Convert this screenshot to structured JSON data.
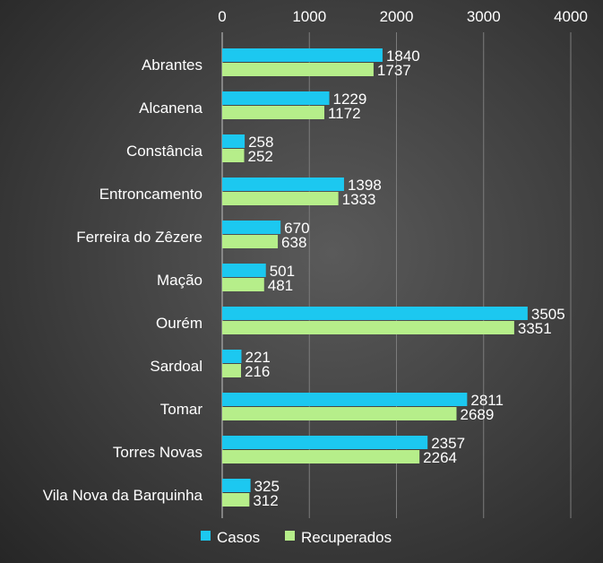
{
  "chart_data": {
    "type": "bar",
    "orientation": "horizontal",
    "categories": [
      "Abrantes",
      "Alcanena",
      "Constância",
      "Entroncamento",
      "Ferreira do Zêzere",
      "Mação",
      "Ourém",
      "Sardoal",
      "Tomar",
      "Torres Novas",
      "Vila Nova da Barquinha"
    ],
    "series": [
      {
        "name": "Casos",
        "color": "#1cc8f0",
        "values": [
          1840,
          1229,
          258,
          1398,
          670,
          501,
          3505,
          221,
          2811,
          2357,
          325
        ]
      },
      {
        "name": "Recuperados",
        "color": "#b6ee8a",
        "values": [
          1737,
          1172,
          252,
          1333,
          638,
          481,
          3351,
          216,
          2689,
          2264,
          312
        ]
      }
    ],
    "xticks": [
      "0",
      "1000",
      "2000",
      "3000",
      "4000"
    ],
    "xlim": [
      0,
      4000
    ],
    "axis_position": "top",
    "grid": true,
    "legend": "bottom"
  }
}
